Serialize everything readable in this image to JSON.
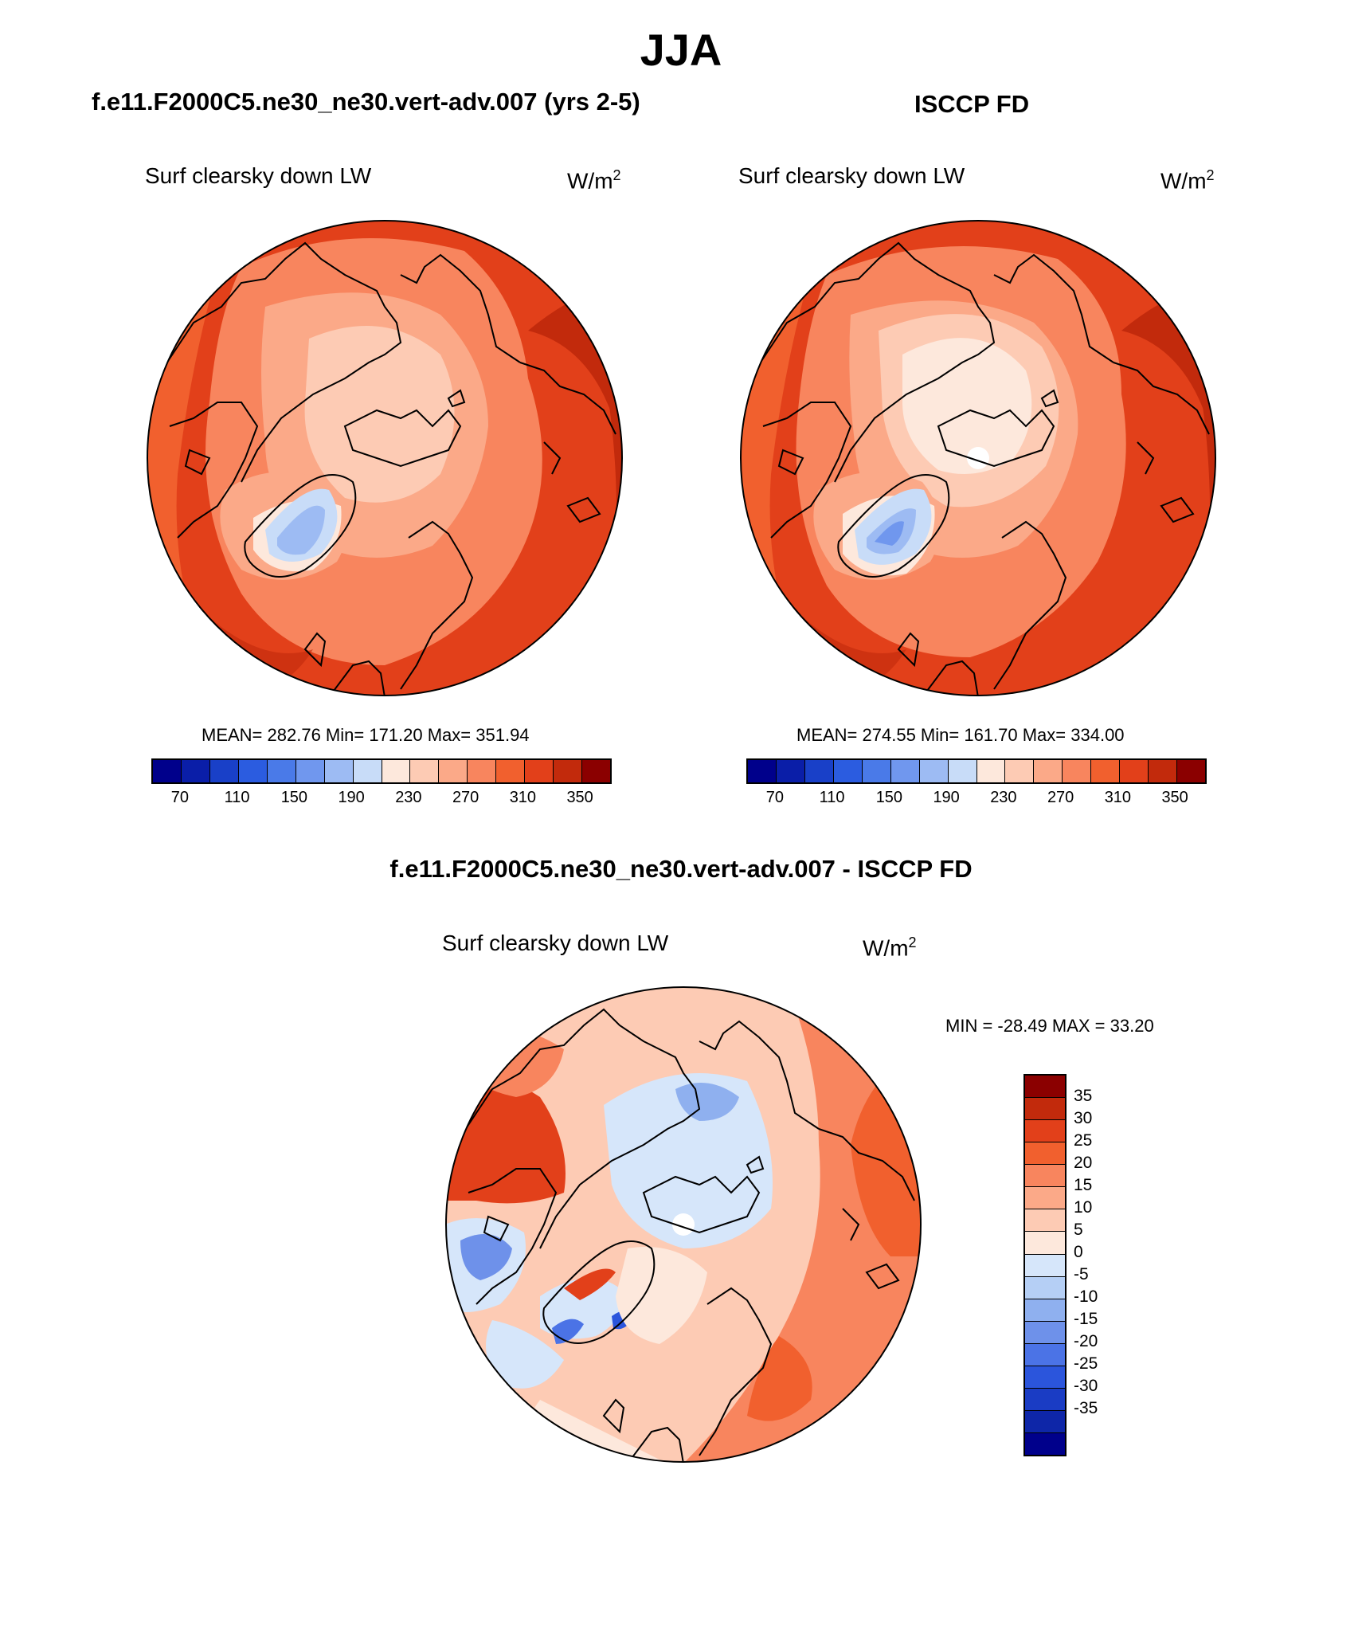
{
  "title": "JJA",
  "left_panel": {
    "case_title": "f.e11.F2000C5.ne30_ne30.vert-adv.007 (yrs 2-5)",
    "variable": "Surf clearsky down LW",
    "units_base": "W/m",
    "units_exp": "2",
    "stats": "MEAN= 282.76  Min= 171.20  Max= 351.94"
  },
  "right_panel": {
    "case_title": "ISCCP FD",
    "variable": "Surf clearsky down LW",
    "units_base": "W/m",
    "units_exp": "2",
    "stats": "MEAN= 274.55  Min= 161.70  Max= 334.00"
  },
  "abs_colorbar": {
    "colors": [
      "#00008b",
      "#0a1ea8",
      "#1940c8",
      "#2b5ce0",
      "#4a7ae8",
      "#7097ee",
      "#9dbbf3",
      "#c8dcf8",
      "#fde8dc",
      "#fdcbb4",
      "#fba988",
      "#f8855e",
      "#f1602e",
      "#e2401a",
      "#c22a0c",
      "#8b0000"
    ],
    "tick_labels": [
      "70",
      "110",
      "150",
      "190",
      "230",
      "270",
      "310",
      "350"
    ]
  },
  "diff_panel": {
    "title": "f.e11.F2000C5.ne30_ne30.vert-adv.007 - ISCCP FD",
    "variable": "Surf clearsky down LW",
    "units_base": "W/m",
    "units_exp": "2",
    "stats": "MIN = -28.49 MAX =  33.20"
  },
  "diff_colorbar": {
    "colors": [
      "#8b0000",
      "#c22a0c",
      "#e2401a",
      "#f1602e",
      "#f8855e",
      "#fba988",
      "#fdcbb4",
      "#fde8dc",
      "#d6e6fa",
      "#b5cff5",
      "#8fb0ef",
      "#6e91ea",
      "#4b73e6",
      "#2b55dc",
      "#1a3cc4",
      "#0e26a8",
      "#00008b"
    ],
    "tick_labels": [
      "35",
      "30",
      "25",
      "20",
      "15",
      "10",
      "5",
      "0",
      "-5",
      "-10",
      "-15",
      "-20",
      "-25",
      "-30",
      "-35"
    ]
  }
}
